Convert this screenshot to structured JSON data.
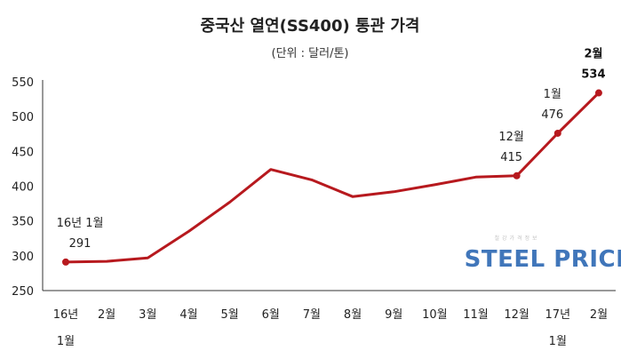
{
  "chart_data": {
    "type": "line",
    "title": "중국산 열연(SS400) 통관 가격",
    "subtitle": "(단위 : 달러/톤)",
    "categories": [
      "16년 1월",
      "2월",
      "3월",
      "4월",
      "5월",
      "6월",
      "7월",
      "8월",
      "9월",
      "10월",
      "11월",
      "12월",
      "17년 1월",
      "2월"
    ],
    "x_tick_labels": [
      {
        "line1": "16년",
        "line2": "1월"
      },
      {
        "line1": "2월",
        "line2": ""
      },
      {
        "line1": "3월",
        "line2": ""
      },
      {
        "line1": "4월",
        "line2": ""
      },
      {
        "line1": "5월",
        "line2": ""
      },
      {
        "line1": "6월",
        "line2": ""
      },
      {
        "line1": "7월",
        "line2": ""
      },
      {
        "line1": "8월",
        "line2": ""
      },
      {
        "line1": "9월",
        "line2": ""
      },
      {
        "line1": "10월",
        "line2": ""
      },
      {
        "line1": "11월",
        "line2": ""
      },
      {
        "line1": "12월",
        "line2": ""
      },
      {
        "line1": "17년",
        "line2": "1월"
      },
      {
        "line1": "2월",
        "line2": ""
      }
    ],
    "series": [
      {
        "name": "중국산 열연(SS400) 통관 가격",
        "values": [
          291,
          292,
          297,
          335,
          377,
          424,
          409,
          385,
          392,
          402,
          413,
          415,
          476,
          534
        ],
        "color": "#b7191e"
      }
    ],
    "ylim": [
      250,
      550
    ],
    "yticks": [
      250,
      300,
      350,
      400,
      450,
      500,
      550
    ],
    "xlabel": "",
    "ylabel": "",
    "grid": false,
    "legend": "none",
    "annotations": [
      {
        "index": 0,
        "label": "16년 1월",
        "value": "291",
        "bold": false
      },
      {
        "index": 11,
        "label": "12월",
        "value": "415",
        "bold": false
      },
      {
        "index": 12,
        "label": "1월",
        "value": "476",
        "bold": false
      },
      {
        "index": 13,
        "label": "2월",
        "value": "534",
        "bold": true
      }
    ],
    "marker_indices": [
      0,
      11,
      12,
      13
    ]
  },
  "watermark": {
    "text_main": "STEEL PRICE",
    "text_top": "철강가격정보",
    "color_primary": "#1f5fae",
    "color_accent": "#d9232a"
  }
}
